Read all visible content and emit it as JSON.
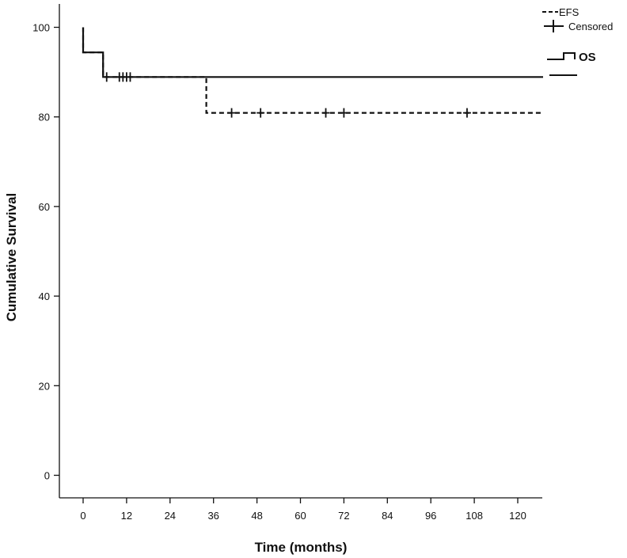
{
  "chart_data": {
    "type": "line",
    "title": "",
    "xlabel": "Time (months)",
    "ylabel": "Cumulative Survival",
    "xlim": [
      -5,
      127
    ],
    "ylim": [
      -5,
      105
    ],
    "xticks": [
      0,
      12,
      24,
      36,
      48,
      60,
      72,
      84,
      96,
      108,
      120
    ],
    "yticks": [
      0,
      20,
      40,
      60,
      80,
      100
    ],
    "grid": false,
    "legend": {
      "position": "top-right",
      "entries": [
        "EFS",
        "Censored",
        "OS"
      ]
    },
    "series": [
      {
        "name": "OS",
        "style": "solid",
        "color": "#111111",
        "x": [
          0,
          0,
          5.5,
          5.5,
          127
        ],
        "y": [
          100,
          94.4,
          94.4,
          88.9,
          88.9
        ],
        "censored_x": [],
        "censored_y": []
      },
      {
        "name": "EFS",
        "style": "dashed",
        "color": "#111111",
        "x": [
          0,
          0,
          5.5,
          5.5,
          34,
          34,
          127
        ],
        "y": [
          100,
          94.4,
          94.4,
          88.9,
          88.9,
          80.9,
          80.9
        ],
        "censored_x": [
          6.5,
          10,
          11,
          12,
          13,
          41,
          49,
          67,
          72,
          106
        ],
        "censored_y": [
          88.9,
          88.9,
          88.9,
          88.9,
          88.9,
          80.9,
          80.9,
          80.9,
          80.9,
          80.9
        ]
      }
    ]
  }
}
